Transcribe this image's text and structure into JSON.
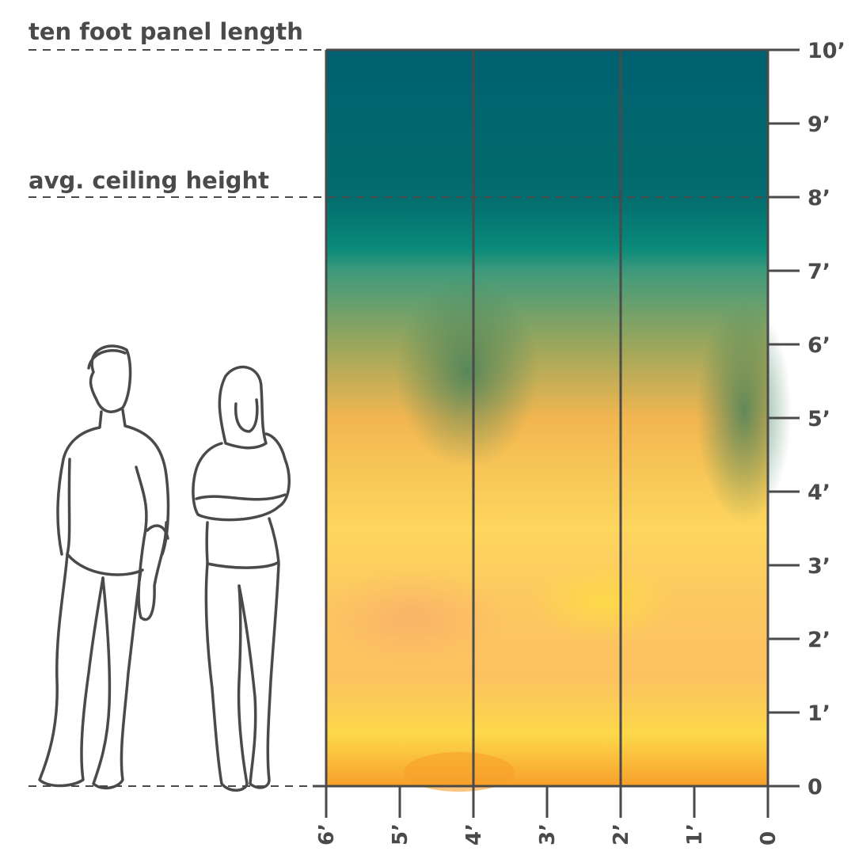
{
  "annotations": {
    "panel_length": "ten foot panel length",
    "ceiling": "avg. ceiling height"
  },
  "vertical_axis": {
    "ticks": [
      "0",
      "1’",
      "2’",
      "3’",
      "4’",
      "5’",
      "6’",
      "7’",
      "8’",
      "9’",
      "10’"
    ]
  },
  "horizontal_axis": {
    "ticks": [
      "6’",
      "5’",
      "4’",
      "3’",
      "2’",
      "1’",
      "0"
    ]
  },
  "panel": {
    "height_ft": 10,
    "width_ft": 6,
    "panel_count": 3,
    "ceiling_ft": 8,
    "colors": {
      "top": "#00606f",
      "teal": "#0a8a7a",
      "mid": "#8aa05a",
      "yellow": "#fcd84a",
      "orange": "#f7a02a",
      "ink": "#4a4a4a"
    }
  }
}
